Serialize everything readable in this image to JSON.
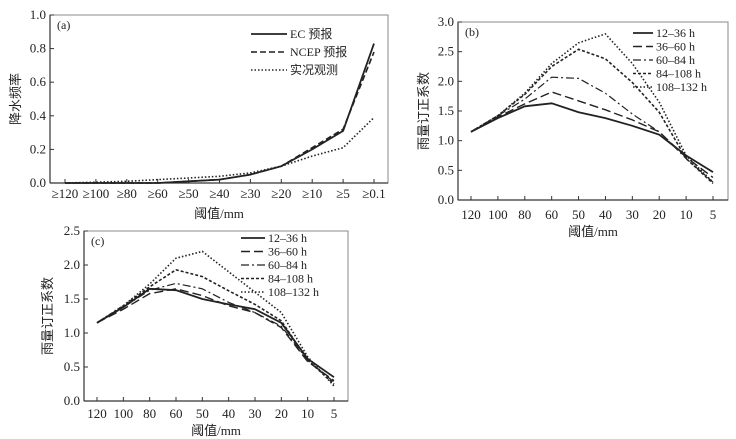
{
  "chart_data": [
    {
      "type": "line",
      "panel": "(a)",
      "xlabel": "阈值/mm",
      "ylabel": "降水频率",
      "categories": [
        "≥120",
        "≥100",
        "≥80",
        "≥60",
        "≥50",
        "≥40",
        "≥30",
        "≥20",
        "≥10",
        "≥5",
        "≥0.1"
      ],
      "ylim": [
        0,
        1.0
      ],
      "yticks": [
        "0.0",
        "0.2",
        "0.4",
        "0.6",
        "0.8",
        "1.0"
      ],
      "legend_position": "top-right",
      "series": [
        {
          "name": "EC 预报",
          "style": "solid",
          "values": [
            0,
            0,
            0,
            0,
            0.01,
            0.02,
            0.05,
            0.1,
            0.2,
            0.31,
            0.83
          ]
        },
        {
          "name": "NCEP 预报",
          "style": "dashed",
          "values": [
            0,
            0,
            0,
            0,
            0.01,
            0.02,
            0.05,
            0.1,
            0.21,
            0.32,
            0.78
          ]
        },
        {
          "name": "实况观测",
          "style": "dotted",
          "values": [
            0,
            0.005,
            0.01,
            0.02,
            0.03,
            0.04,
            0.06,
            0.1,
            0.16,
            0.21,
            0.39
          ]
        }
      ]
    },
    {
      "type": "line",
      "panel": "(b)",
      "xlabel": "阈值/mm",
      "ylabel": "雨量订正系数",
      "categories": [
        "120",
        "100",
        "80",
        "60",
        "50",
        "40",
        "30",
        "20",
        "10",
        "5"
      ],
      "ylim": [
        0,
        3.0
      ],
      "yticks": [
        "0.0",
        "0.5",
        "1.0",
        "1.5",
        "2.0",
        "2.5",
        "3.0"
      ],
      "legend_position": "top-right",
      "series": [
        {
          "name": "12–36 h",
          "style": "solid",
          "values": [
            1.15,
            1.38,
            1.58,
            1.63,
            1.48,
            1.38,
            1.25,
            1.1,
            0.75,
            0.47
          ]
        },
        {
          "name": "36–60 h",
          "style": "longdash",
          "values": [
            1.15,
            1.4,
            1.62,
            1.82,
            1.67,
            1.52,
            1.35,
            1.15,
            0.72,
            0.38
          ]
        },
        {
          "name": "60–84 h",
          "style": "dashdot",
          "values": [
            1.15,
            1.42,
            1.7,
            2.07,
            2.05,
            1.8,
            1.45,
            1.15,
            0.7,
            0.3
          ]
        },
        {
          "name": "84–108 h",
          "style": "shortdash",
          "values": [
            1.15,
            1.42,
            1.78,
            2.25,
            2.54,
            2.38,
            1.98,
            1.48,
            0.7,
            0.28
          ]
        },
        {
          "name": "108–132 h",
          "style": "dotted",
          "values": [
            1.15,
            1.42,
            1.8,
            2.3,
            2.65,
            2.8,
            2.3,
            1.65,
            0.75,
            0.3
          ]
        }
      ]
    },
    {
      "type": "line",
      "panel": "(c)",
      "xlabel": "阈值/mm",
      "ylabel": "雨量订正系数",
      "categories": [
        "120",
        "100",
        "80",
        "60",
        "50",
        "40",
        "30",
        "20",
        "10",
        "5"
      ],
      "ylim": [
        0,
        2.5
      ],
      "yticks": [
        "0.0",
        "0.5",
        "1.0",
        "1.5",
        "2.0",
        "2.5"
      ],
      "legend_position": "top-right",
      "series": [
        {
          "name": "12–36 h",
          "style": "solid",
          "values": [
            1.15,
            1.38,
            1.65,
            1.63,
            1.5,
            1.42,
            1.35,
            1.15,
            0.62,
            0.35
          ]
        },
        {
          "name": "36–60 h",
          "style": "longdash",
          "values": [
            1.15,
            1.35,
            1.58,
            1.65,
            1.55,
            1.4,
            1.3,
            1.08,
            0.58,
            0.3
          ]
        },
        {
          "name": "60–84 h",
          "style": "dashdot",
          "values": [
            1.15,
            1.38,
            1.63,
            1.73,
            1.65,
            1.45,
            1.3,
            1.1,
            0.6,
            0.28
          ]
        },
        {
          "name": "84–108 h",
          "style": "shortdash",
          "values": [
            1.15,
            1.4,
            1.68,
            1.93,
            1.83,
            1.62,
            1.42,
            1.18,
            0.6,
            0.25
          ]
        },
        {
          "name": "108–132 h",
          "style": "dotted",
          "values": [
            1.15,
            1.4,
            1.72,
            2.1,
            2.2,
            1.9,
            1.6,
            1.3,
            0.65,
            0.22
          ]
        }
      ]
    }
  ]
}
